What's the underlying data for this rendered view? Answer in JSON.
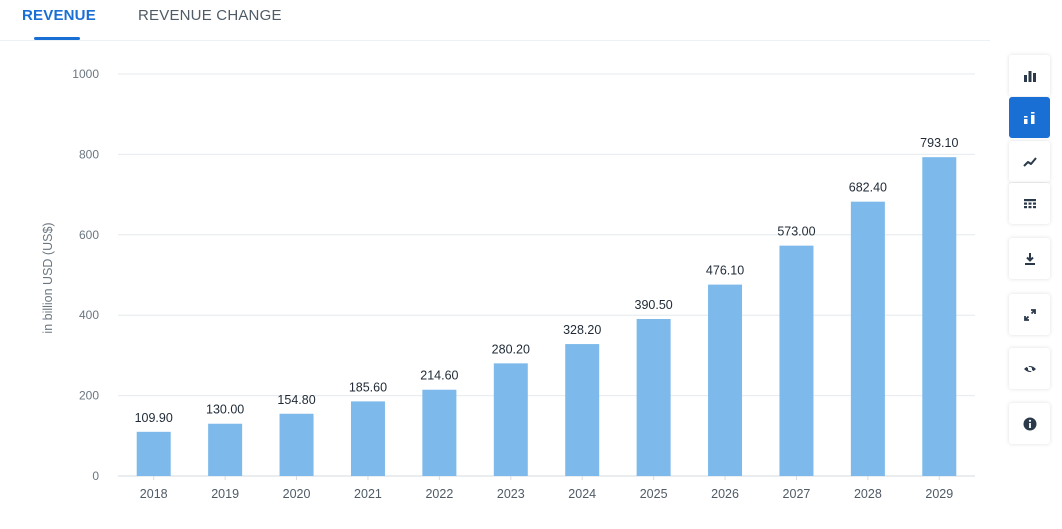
{
  "tabs": {
    "revenue": "REVENUE",
    "revenue_change": "REVENUE CHANGE"
  },
  "colors": {
    "accent": "#1a6fd4",
    "bar": "#7db9ea",
    "toolbar_icon": "#2b3a4a"
  },
  "toolbar": {
    "icons": [
      "bar-chart-icon",
      "bar-chart-labels-icon",
      "line-chart-icon",
      "table-icon",
      "download-icon",
      "fullscreen-icon",
      "hide-icon",
      "info-icon"
    ],
    "active": "bar-chart-labels-icon"
  },
  "chart_data": {
    "type": "bar",
    "title": "",
    "xlabel": "",
    "ylabel": "in billion USD (US$)",
    "categories": [
      "2018",
      "2019",
      "2020",
      "2021",
      "2022",
      "2023",
      "2024",
      "2025",
      "2026",
      "2027",
      "2028",
      "2029"
    ],
    "values": [
      109.9,
      130.0,
      154.8,
      185.6,
      214.6,
      280.2,
      328.2,
      390.5,
      476.1,
      573.0,
      682.4,
      793.1
    ],
    "value_labels": [
      "109.90",
      "130.00",
      "154.80",
      "185.60",
      "214.60",
      "280.20",
      "328.20",
      "390.50",
      "476.10",
      "573.00",
      "682.40",
      "793.10"
    ],
    "yticks": [
      0,
      200,
      400,
      600,
      800,
      1000
    ],
    "ylim": [
      0,
      1000
    ],
    "grid": true
  }
}
